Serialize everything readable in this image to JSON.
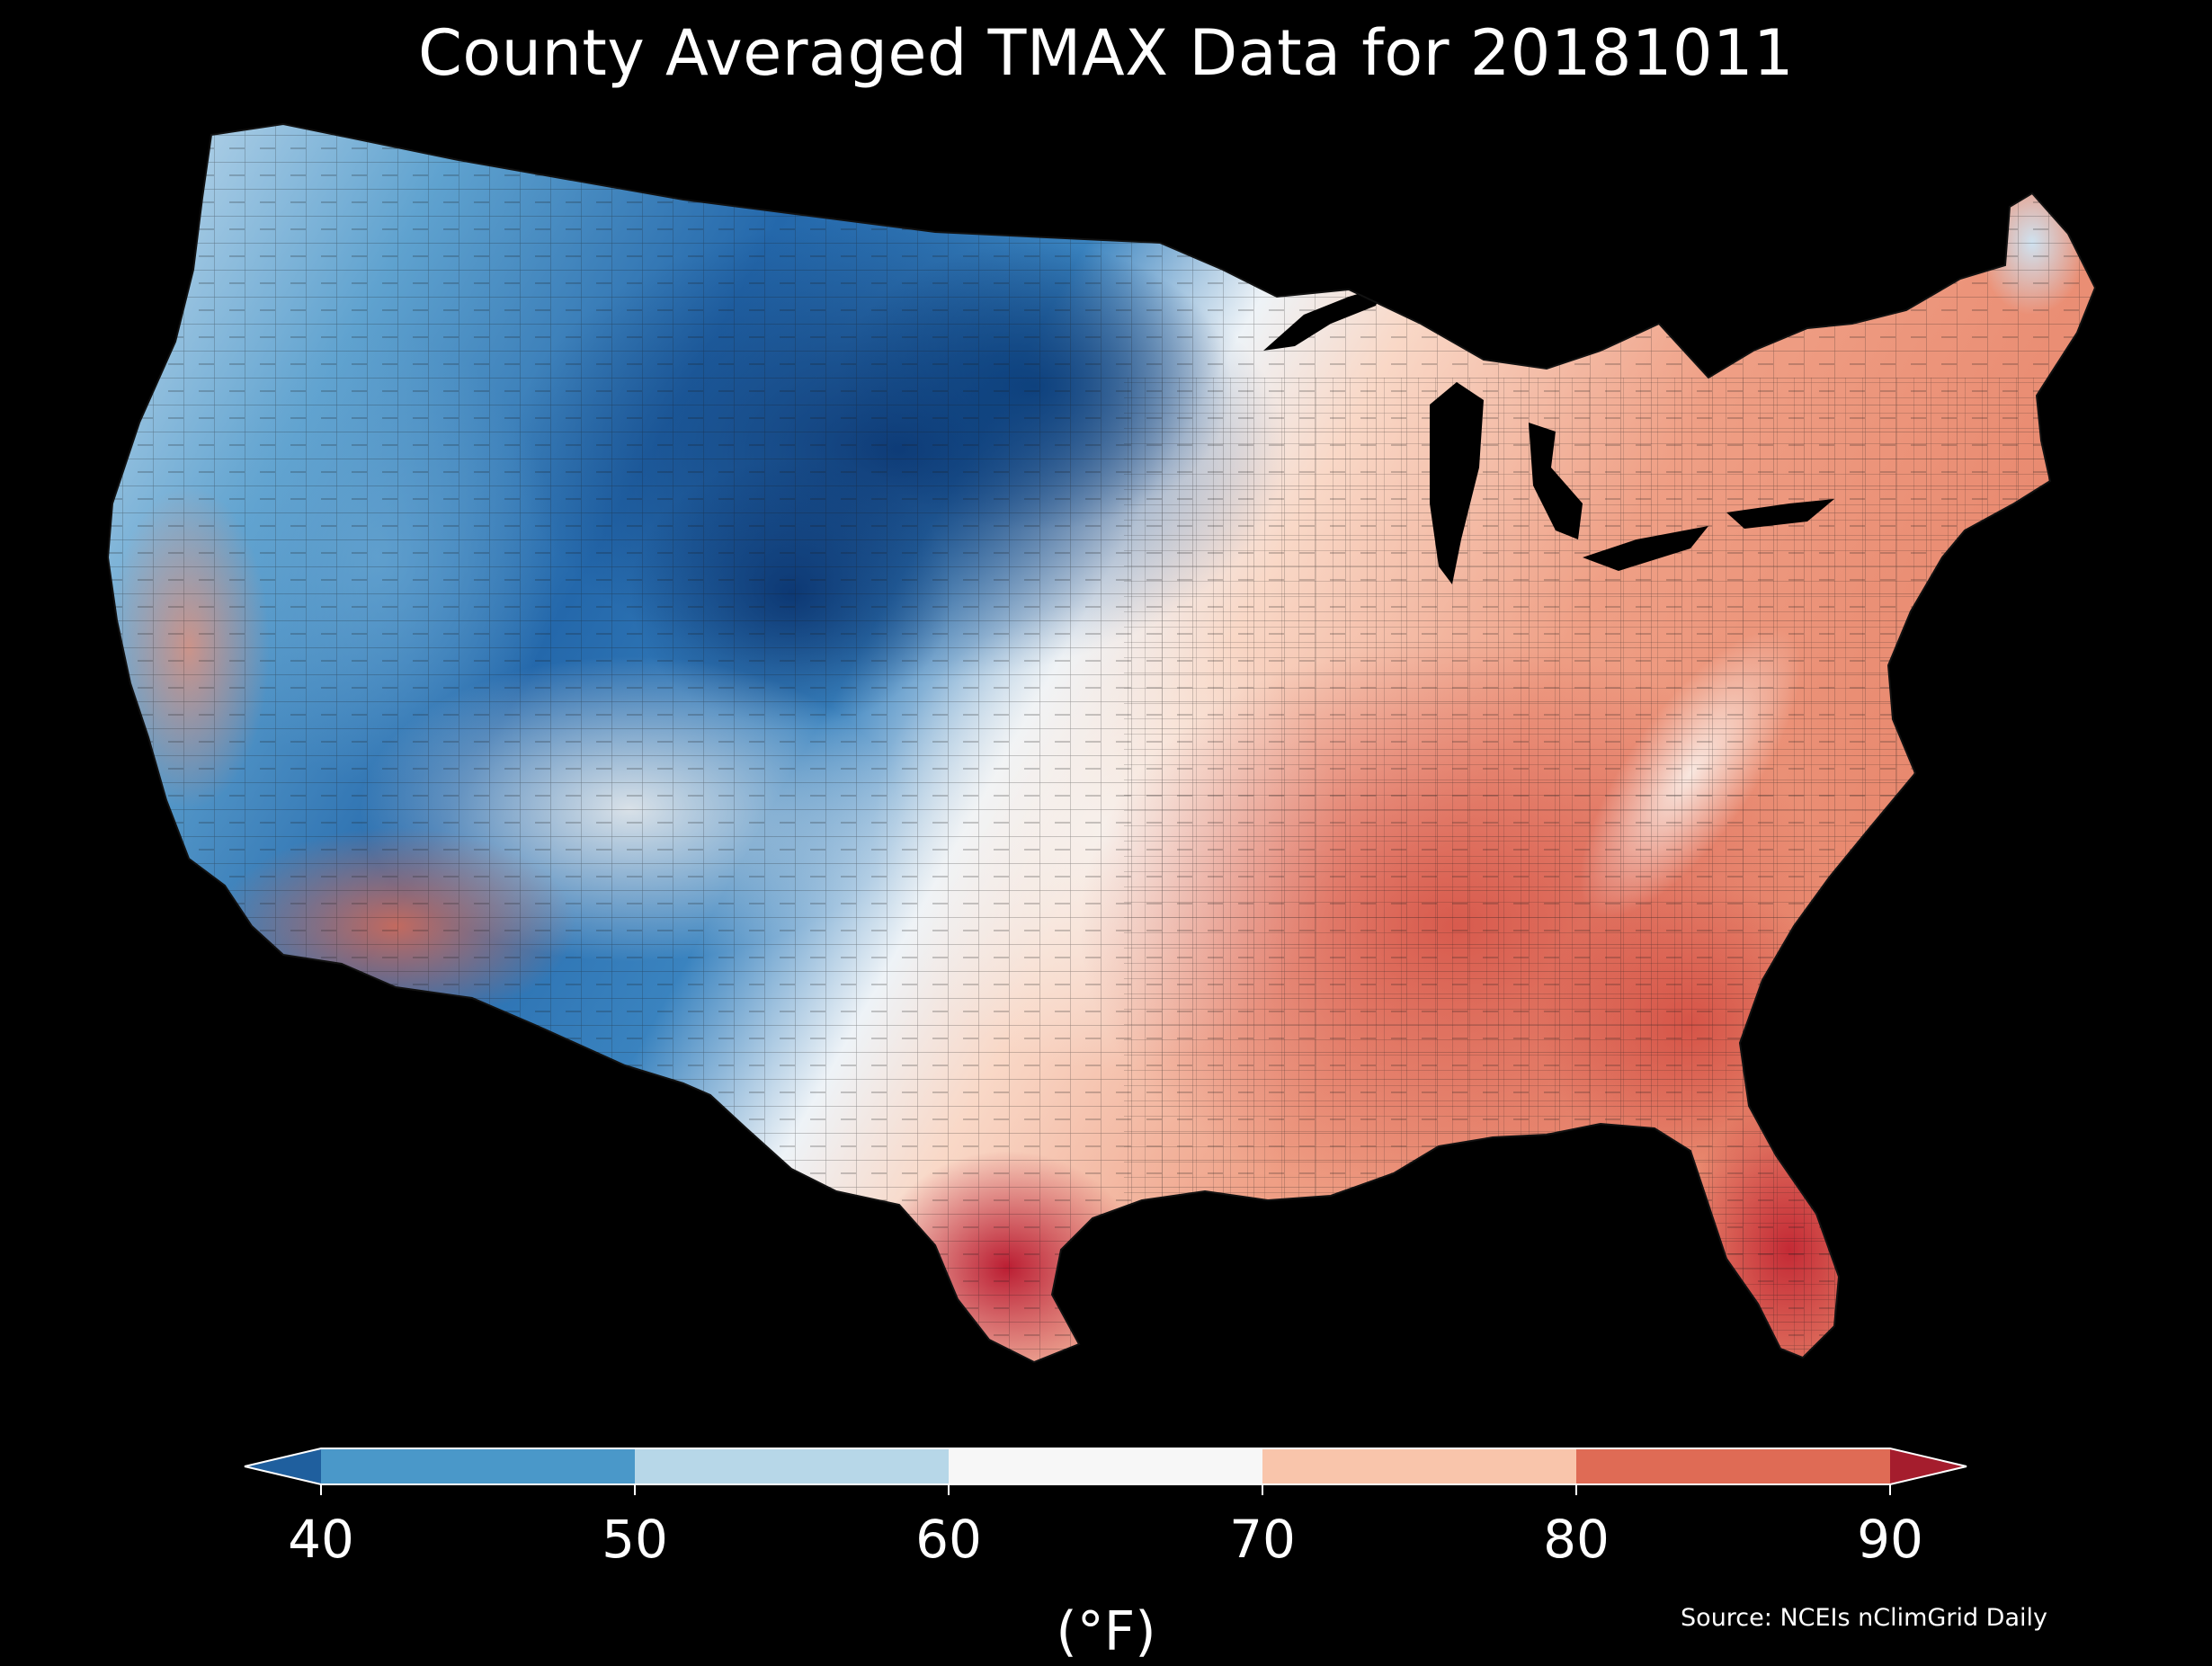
{
  "map": {
    "title": "County Averaged TMAX Data for 20181011",
    "source": "Source: NCEIs nClimGrid Daily",
    "region": "Contiguous United States",
    "variable": "TMAX",
    "date": "20181011",
    "background_color": "#000000",
    "regional_pattern": [
      {
        "region": "northern-plains",
        "color": "#1f5f9e"
      },
      {
        "region": "northern-rockies",
        "color": "#2b73b3"
      },
      {
        "region": "great-basin",
        "color": "#8ebfdb"
      },
      {
        "region": "pacific-northwest",
        "color": "#d9e8f2"
      },
      {
        "region": "central-valley-california",
        "color": "#f4b89b"
      },
      {
        "region": "desert-southwest",
        "color": "#e8826a"
      },
      {
        "region": "southern-plains",
        "color": "#f7f2ee"
      },
      {
        "region": "midwest",
        "color": "#f9d4c0"
      },
      {
        "region": "appalachians",
        "color": "#fbe6da"
      },
      {
        "region": "southeast",
        "color": "#e7715a"
      },
      {
        "region": "gulf-coast",
        "color": "#d64b45"
      },
      {
        "region": "south-texas",
        "color": "#c62a35"
      },
      {
        "region": "florida",
        "color": "#c9323a"
      },
      {
        "region": "northeast",
        "color": "#ee9c82"
      },
      {
        "region": "northern-maine",
        "color": "#d9e8f2"
      }
    ]
  },
  "colorbar": {
    "unit": "(°F)",
    "ticks": [
      "40",
      "50",
      "60",
      "70",
      "80",
      "90"
    ],
    "bins": [
      {
        "from": 40,
        "to": 50,
        "color": "#4a98c9"
      },
      {
        "from": 50,
        "to": 60,
        "color": "#b7d7e8"
      },
      {
        "from": 60,
        "to": 70,
        "color": "#f7f7f7"
      },
      {
        "from": 70,
        "to": 80,
        "color": "#f9c5ab"
      },
      {
        "from": 80,
        "to": 90,
        "color": "#df6b55"
      }
    ],
    "under_color": "#1f5f9e",
    "over_color": "#a51d2d",
    "outline_color": "#ffffff"
  }
}
